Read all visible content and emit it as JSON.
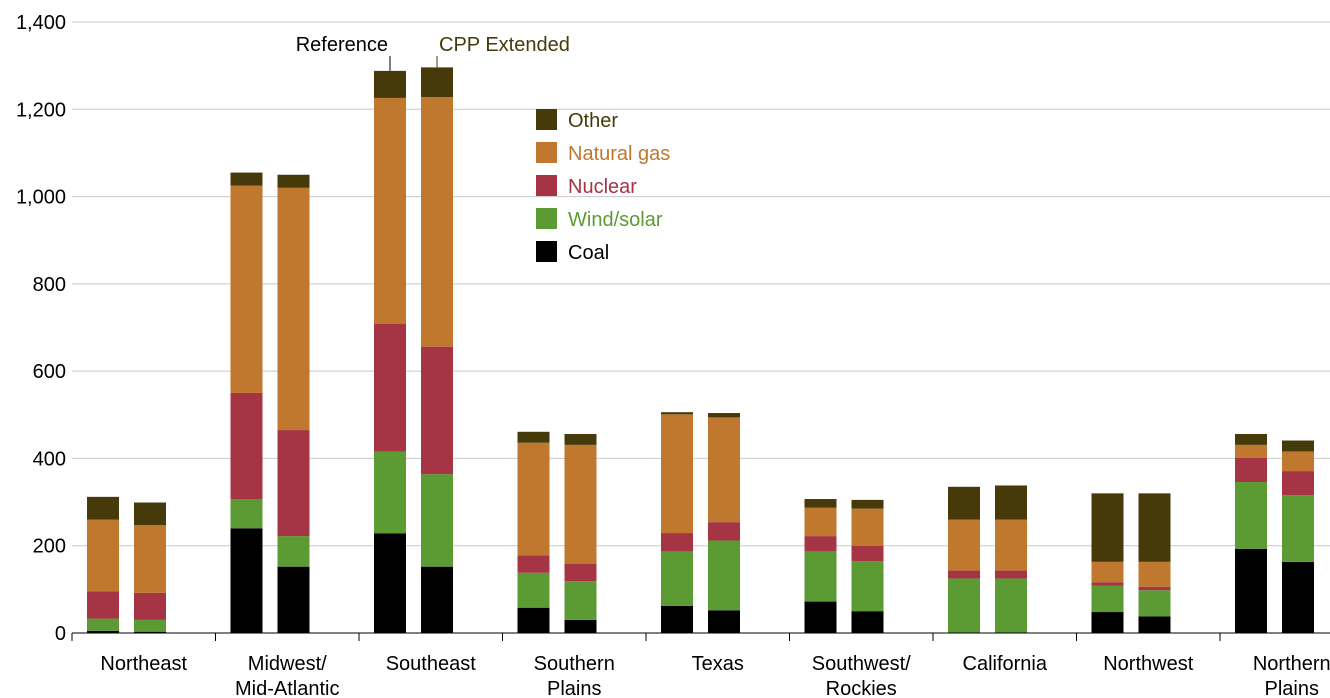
{
  "chart_data": {
    "type": "bar",
    "stacked": true,
    "title": "",
    "xlabel": "",
    "ylabel": "",
    "ylim": [
      0,
      1400
    ],
    "yticks": [
      0,
      200,
      400,
      600,
      800,
      1000,
      1200,
      1400
    ],
    "ytick_labels": [
      "0",
      "200",
      "400",
      "600",
      "800",
      "1,000",
      "1,200",
      "1,400"
    ],
    "grid": "horizontal",
    "legend_position": "top-center",
    "bar_annotations": [
      "Reference",
      "CPP Extended"
    ],
    "categories": [
      {
        "label": [
          "Northeast"
        ]
      },
      {
        "label": [
          "Midwest/",
          "Mid-Atlantic"
        ]
      },
      {
        "label": [
          "Southeast"
        ]
      },
      {
        "label": [
          "Southern",
          "Plains"
        ]
      },
      {
        "label": [
          "Texas"
        ]
      },
      {
        "label": [
          "Southwest/",
          "Rockies"
        ]
      },
      {
        "label": [
          "California"
        ]
      },
      {
        "label": [
          "Northwest"
        ]
      },
      {
        "label": [
          "Northern",
          "Plains"
        ]
      }
    ],
    "series": [
      {
        "name": "Coal",
        "color": "#000000",
        "reference": [
          5,
          240,
          228,
          58,
          62,
          72,
          0,
          48,
          193
        ],
        "cpp_extended": [
          3,
          152,
          152,
          30,
          52,
          50,
          0,
          38,
          163
        ]
      },
      {
        "name": "Wind/solar",
        "color": "#5c9a33",
        "reference": [
          28,
          67,
          188,
          80,
          125,
          115,
          125,
          60,
          153
        ],
        "cpp_extended": [
          27,
          70,
          212,
          89,
          160,
          115,
          125,
          60,
          153
        ]
      },
      {
        "name": "Nuclear",
        "color": "#a53445",
        "reference": [
          62,
          243,
          292,
          40,
          42,
          35,
          18,
          8,
          55
        ],
        "cpp_extended": [
          62,
          243,
          292,
          40,
          42,
          35,
          18,
          8,
          55
        ]
      },
      {
        "name": "Natural gas",
        "color": "#c0782e",
        "reference": [
          165,
          475,
          518,
          258,
          272,
          65,
          117,
          47,
          30
        ],
        "cpp_extended": [
          155,
          555,
          572,
          272,
          240,
          85,
          117,
          57,
          45
        ]
      },
      {
        "name": "Other",
        "color": "#463a0a",
        "reference": [
          52,
          30,
          62,
          25,
          5,
          20,
          75,
          157,
          25
        ],
        "cpp_extended": [
          52,
          30,
          68,
          25,
          10,
          20,
          78,
          157,
          25
        ]
      }
    ],
    "legend_order": [
      "Other",
      "Natural gas",
      "Nuclear",
      "Wind/solar",
      "Coal"
    ]
  }
}
